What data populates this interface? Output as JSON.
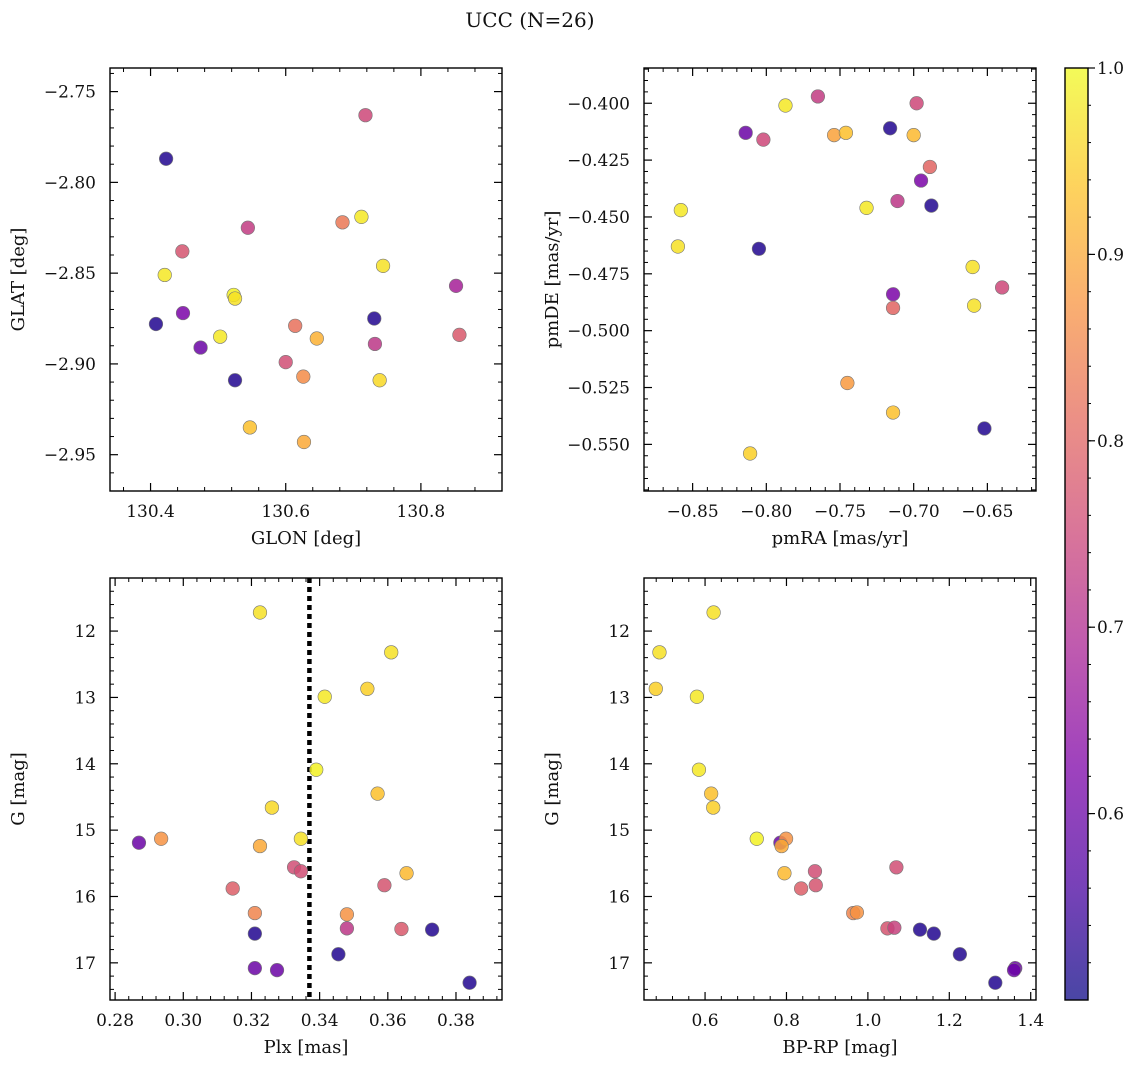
{
  "figure": {
    "title": "UCC (N=26)"
  },
  "colorbar": {
    "range": [
      0.5,
      1.0
    ],
    "ticks": [
      0.6,
      0.7,
      0.8,
      0.9,
      1.0
    ],
    "tick_labels": [
      "0.6",
      "0.7",
      "0.8",
      "0.9",
      "1.0"
    ],
    "colormap": "plasma"
  },
  "chart_data": [
    {
      "type": "scatter",
      "panel": "glon-glat",
      "xlabel": "GLON [deg]",
      "ylabel": "GLAT [deg]",
      "xlim": [
        130.34,
        130.92
      ],
      "ylim": [
        -2.97,
        -2.737
      ],
      "xticks": [
        130.4,
        130.6,
        130.8
      ],
      "xtick_labels": [
        "130.4",
        "130.6",
        "130.8"
      ],
      "yticks": [
        -2.75,
        -2.8,
        -2.85,
        -2.9,
        -2.95
      ],
      "ytick_labels": [
        "−2.75",
        "−2.80",
        "−2.85",
        "−2.90",
        "−2.95"
      ],
      "points": [
        {
          "x": 130.423,
          "y": -2.787,
          "c": 0.52
        },
        {
          "x": 130.408,
          "y": -2.878,
          "c": 0.52
        },
        {
          "x": 130.421,
          "y": -2.851,
          "c": 0.98
        },
        {
          "x": 130.447,
          "y": -2.838,
          "c": 0.77
        },
        {
          "x": 130.448,
          "y": -2.872,
          "c": 0.62
        },
        {
          "x": 130.474,
          "y": -2.891,
          "c": 0.6
        },
        {
          "x": 130.503,
          "y": -2.885,
          "c": 0.98
        },
        {
          "x": 130.523,
          "y": -2.862,
          "c": 0.99
        },
        {
          "x": 130.525,
          "y": -2.864,
          "c": 0.97
        },
        {
          "x": 130.525,
          "y": -2.909,
          "c": 0.52
        },
        {
          "x": 130.544,
          "y": -2.825,
          "c": 0.73
        },
        {
          "x": 130.547,
          "y": -2.935,
          "c": 0.93
        },
        {
          "x": 130.6,
          "y": -2.899,
          "c": 0.76
        },
        {
          "x": 130.614,
          "y": -2.879,
          "c": 0.82
        },
        {
          "x": 130.626,
          "y": -2.907,
          "c": 0.86
        },
        {
          "x": 130.627,
          "y": -2.943,
          "c": 0.9
        },
        {
          "x": 130.646,
          "y": -2.886,
          "c": 0.91
        },
        {
          "x": 130.684,
          "y": -2.822,
          "c": 0.83
        },
        {
          "x": 130.712,
          "y": -2.819,
          "c": 0.98
        },
        {
          "x": 130.718,
          "y": -2.763,
          "c": 0.75
        },
        {
          "x": 130.731,
          "y": -2.875,
          "c": 0.52
        },
        {
          "x": 130.732,
          "y": -2.889,
          "c": 0.72
        },
        {
          "x": 130.739,
          "y": -2.909,
          "c": 0.96
        },
        {
          "x": 130.744,
          "y": -2.846,
          "c": 0.97
        },
        {
          "x": 130.852,
          "y": -2.857,
          "c": 0.68
        },
        {
          "x": 130.857,
          "y": -2.884,
          "c": 0.78
        }
      ]
    },
    {
      "type": "scatter",
      "panel": "pmra-pmde",
      "xlabel": "pmRA [mas/yr]",
      "ylabel": "pmDE [mas/yr]",
      "xlim": [
        -0.883,
        -0.617
      ],
      "ylim": [
        -0.5705,
        -0.3845
      ],
      "xticks": [
        -0.85,
        -0.8,
        -0.75,
        -0.7,
        -0.65
      ],
      "xtick_labels": [
        "−0.85",
        "−0.80",
        "−0.75",
        "−0.70",
        "−0.65"
      ],
      "yticks": [
        -0.4,
        -0.425,
        -0.45,
        -0.475,
        -0.5,
        -0.525,
        -0.55
      ],
      "ytick_labels": [
        "−0.400",
        "−0.425",
        "−0.450",
        "−0.475",
        "−0.500",
        "−0.525",
        "−0.550"
      ],
      "points": [
        {
          "x": -0.858,
          "y": -0.447,
          "c": 0.98
        },
        {
          "x": -0.86,
          "y": -0.463,
          "c": 0.97
        },
        {
          "x": -0.814,
          "y": -0.413,
          "c": 0.6
        },
        {
          "x": -0.802,
          "y": -0.416,
          "c": 0.75
        },
        {
          "x": -0.805,
          "y": -0.464,
          "c": 0.52
        },
        {
          "x": -0.811,
          "y": -0.554,
          "c": 0.95
        },
        {
          "x": -0.787,
          "y": -0.401,
          "c": 0.98
        },
        {
          "x": -0.765,
          "y": -0.397,
          "c": 0.73
        },
        {
          "x": -0.754,
          "y": -0.414,
          "c": 0.89
        },
        {
          "x": -0.746,
          "y": -0.413,
          "c": 0.93
        },
        {
          "x": -0.745,
          "y": -0.523,
          "c": 0.88
        },
        {
          "x": -0.732,
          "y": -0.446,
          "c": 0.98
        },
        {
          "x": -0.716,
          "y": -0.411,
          "c": 0.52
        },
        {
          "x": -0.714,
          "y": -0.484,
          "c": 0.62
        },
        {
          "x": -0.714,
          "y": -0.49,
          "c": 0.8
        },
        {
          "x": -0.714,
          "y": -0.536,
          "c": 0.93
        },
        {
          "x": -0.711,
          "y": -0.443,
          "c": 0.72
        },
        {
          "x": -0.7,
          "y": -0.414,
          "c": 0.92
        },
        {
          "x": -0.698,
          "y": -0.4,
          "c": 0.75
        },
        {
          "x": -0.695,
          "y": -0.434,
          "c": 0.62
        },
        {
          "x": -0.689,
          "y": -0.428,
          "c": 0.8
        },
        {
          "x": -0.688,
          "y": -0.445,
          "c": 0.52
        },
        {
          "x": -0.66,
          "y": -0.472,
          "c": 0.97
        },
        {
          "x": -0.659,
          "y": -0.489,
          "c": 0.97
        },
        {
          "x": -0.652,
          "y": -0.543,
          "c": 0.52
        },
        {
          "x": -0.64,
          "y": -0.481,
          "c": 0.75
        }
      ]
    },
    {
      "type": "scatter",
      "panel": "plx-g",
      "xlabel": "Plx [mas]",
      "ylabel": "G [mag]",
      "xlim": [
        0.2785,
        0.3935
      ],
      "ylim": [
        17.56,
        11.2
      ],
      "y_inverted": true,
      "xticks": [
        0.28,
        0.3,
        0.32,
        0.34,
        0.36,
        0.38
      ],
      "xtick_labels": [
        "0.28",
        "0.30",
        "0.32",
        "0.34",
        "0.36",
        "0.38"
      ],
      "yticks": [
        12,
        13,
        14,
        15,
        16,
        17
      ],
      "ytick_labels": [
        "12",
        "13",
        "14",
        "15",
        "16",
        "17"
      ],
      "vline": {
        "x": 0.337,
        "style": "dotted"
      },
      "points": [
        {
          "x": 0.3225,
          "y": 11.72,
          "c": 0.97
        },
        {
          "x": 0.361,
          "y": 12.32,
          "c": 0.97
        },
        {
          "x": 0.354,
          "y": 12.87,
          "c": 0.95
        },
        {
          "x": 0.3415,
          "y": 12.99,
          "c": 0.98
        },
        {
          "x": 0.339,
          "y": 14.09,
          "c": 0.99
        },
        {
          "x": 0.357,
          "y": 14.45,
          "c": 0.93
        },
        {
          "x": 0.326,
          "y": 14.66,
          "c": 0.96
        },
        {
          "x": 0.3345,
          "y": 15.13,
          "c": 0.97
        },
        {
          "x": 0.287,
          "y": 15.19,
          "c": 0.6
        },
        {
          "x": 0.2935,
          "y": 15.13,
          "c": 0.87
        },
        {
          "x": 0.3225,
          "y": 15.24,
          "c": 0.9
        },
        {
          "x": 0.3325,
          "y": 15.56,
          "c": 0.76
        },
        {
          "x": 0.3345,
          "y": 15.62,
          "c": 0.76
        },
        {
          "x": 0.3655,
          "y": 15.65,
          "c": 0.92
        },
        {
          "x": 0.3145,
          "y": 15.88,
          "c": 0.79
        },
        {
          "x": 0.359,
          "y": 15.83,
          "c": 0.77
        },
        {
          "x": 0.321,
          "y": 16.25,
          "c": 0.85
        },
        {
          "x": 0.348,
          "y": 16.27,
          "c": 0.87
        },
        {
          "x": 0.348,
          "y": 16.48,
          "c": 0.72
        },
        {
          "x": 0.364,
          "y": 16.49,
          "c": 0.78
        },
        {
          "x": 0.373,
          "y": 16.5,
          "c": 0.52
        },
        {
          "x": 0.321,
          "y": 16.56,
          "c": 0.52
        },
        {
          "x": 0.3455,
          "y": 16.87,
          "c": 0.52
        },
        {
          "x": 0.321,
          "y": 17.08,
          "c": 0.6
        },
        {
          "x": 0.3275,
          "y": 17.11,
          "c": 0.6
        },
        {
          "x": 0.384,
          "y": 17.3,
          "c": 0.52
        }
      ]
    },
    {
      "type": "scatter",
      "panel": "bprp-g",
      "xlabel": "BP-RP [mag]",
      "ylabel": "G [mag]",
      "xlim": [
        0.45,
        1.413
      ],
      "ylim": [
        17.56,
        11.2
      ],
      "y_inverted": true,
      "xticks": [
        0.6,
        0.8,
        1.0,
        1.2,
        1.4
      ],
      "xtick_labels": [
        "0.6",
        "0.8",
        "1.0",
        "1.2",
        "1.4"
      ],
      "yticks": [
        12,
        13,
        14,
        15,
        16,
        17
      ],
      "ytick_labels": [
        "12",
        "13",
        "14",
        "15",
        "16",
        "17"
      ],
      "points": [
        {
          "x": 0.621,
          "y": 11.72,
          "c": 0.97
        },
        {
          "x": 0.488,
          "y": 12.32,
          "c": 0.97
        },
        {
          "x": 0.479,
          "y": 12.87,
          "c": 0.95
        },
        {
          "x": 0.58,
          "y": 12.99,
          "c": 0.98
        },
        {
          "x": 0.585,
          "y": 14.09,
          "c": 0.98
        },
        {
          "x": 0.615,
          "y": 14.45,
          "c": 0.93
        },
        {
          "x": 0.62,
          "y": 14.66,
          "c": 0.95
        },
        {
          "x": 0.727,
          "y": 15.13,
          "c": 0.99
        },
        {
          "x": 0.785,
          "y": 15.19,
          "c": 0.6
        },
        {
          "x": 0.799,
          "y": 15.13,
          "c": 0.87
        },
        {
          "x": 0.788,
          "y": 15.24,
          "c": 0.9
        },
        {
          "x": 1.07,
          "y": 15.56,
          "c": 0.76
        },
        {
          "x": 0.87,
          "y": 15.62,
          "c": 0.76
        },
        {
          "x": 0.795,
          "y": 15.65,
          "c": 0.92
        },
        {
          "x": 0.836,
          "y": 15.88,
          "c": 0.79
        },
        {
          "x": 0.872,
          "y": 15.83,
          "c": 0.77
        },
        {
          "x": 0.964,
          "y": 16.25,
          "c": 0.85
        },
        {
          "x": 0.973,
          "y": 16.24,
          "c": 0.87
        },
        {
          "x": 1.048,
          "y": 16.48,
          "c": 0.77
        },
        {
          "x": 1.065,
          "y": 16.47,
          "c": 0.74
        },
        {
          "x": 1.128,
          "y": 16.5,
          "c": 0.52
        },
        {
          "x": 1.162,
          "y": 16.56,
          "c": 0.52
        },
        {
          "x": 1.226,
          "y": 16.87,
          "c": 0.52
        },
        {
          "x": 1.362,
          "y": 17.08,
          "c": 0.6
        },
        {
          "x": 1.359,
          "y": 17.11,
          "c": 0.6
        },
        {
          "x": 1.313,
          "y": 17.3,
          "c": 0.52
        }
      ]
    }
  ]
}
